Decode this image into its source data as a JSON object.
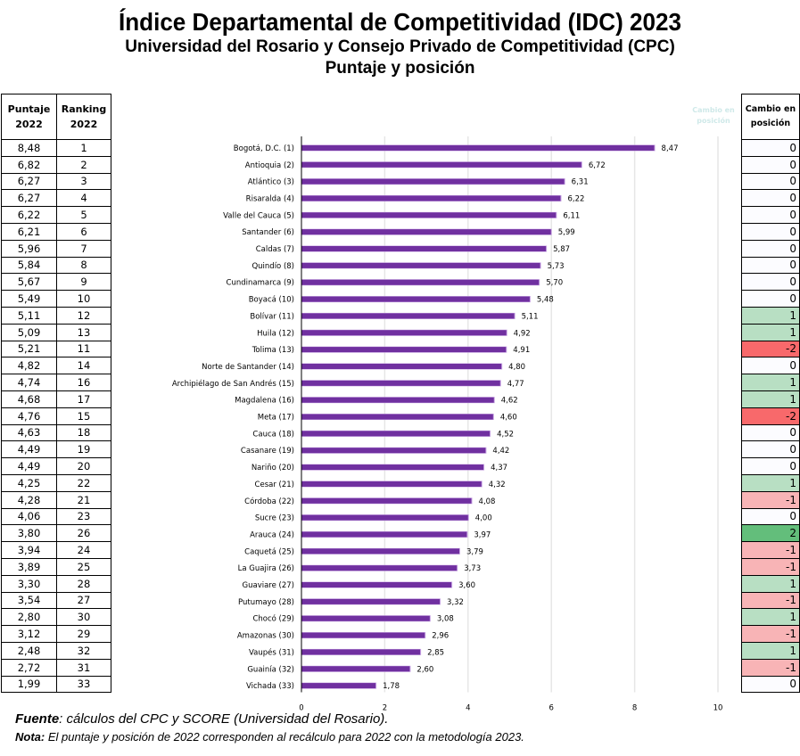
{
  "header": {
    "title": "Índice Departamental de Competitividad (IDC) 2023",
    "subtitle": "Universidad del Rosario y Consejo Privado de Competitividad (CPC)",
    "subtitle2": "Puntaje y posición"
  },
  "left_table": {
    "headers": [
      "Puntaje 2022",
      "Ranking 2022"
    ],
    "header_lines": [
      [
        "Puntaje",
        "2022"
      ],
      [
        "Ranking",
        "2022"
      ]
    ]
  },
  "right_table": {
    "header_lines": [
      "Cambio en",
      "posición"
    ],
    "ghost_header_lines": [
      "Cambio en",
      "posición"
    ]
  },
  "colors": {
    "bar": "#7030a0",
    "bar_edge": "#c9a6e4",
    "gridline": "#e6e6e6",
    "axis": "#000000",
    "change_zero": "#fcfcff",
    "change_plus1": "#b8dfc3",
    "change_plus2": "#63be7b",
    "change_minus1": "#f8b4b6",
    "change_minus2": "#f8696b"
  },
  "chart_data": {
    "type": "bar",
    "orientation": "horizontal",
    "title": "Índice Departamental de Competitividad (IDC) 2023",
    "subtitle": "Puntaje y posición",
    "xlabel": "",
    "ylabel": "",
    "xlim": [
      0,
      10
    ],
    "xticks": [
      0,
      2,
      4,
      6,
      8,
      10
    ],
    "xtick_labels": [
      "0",
      "2",
      "4",
      "6",
      "8",
      "10"
    ],
    "grid": true,
    "legend": "none",
    "categories": [
      "Bogotá, D.C. (1)",
      "Antioquia (2)",
      "Atlántico (3)",
      "Risaralda (4)",
      "Valle del Cauca (5)",
      "Santander (6)",
      "Caldas (7)",
      "Quindío (8)",
      "Cundinamarca (9)",
      "Boyacá (10)",
      "Bolívar (11)",
      "Huila (12)",
      "Tolima (13)",
      "Norte de Santander (14)",
      "Archipiélago de San Andrés (15)",
      "Magdalena (16)",
      "Meta (17)",
      "Cauca (18)",
      "Casanare (19)",
      "Nariño (20)",
      "Cesar (21)",
      "Córdoba (22)",
      "Sucre (23)",
      "Arauca (24)",
      "Caquetá (25)",
      "La Guajira (26)",
      "Guaviare (27)",
      "Putumayo (28)",
      "Chocó (29)",
      "Amazonas (30)",
      "Vaupés (31)",
      "Guainía (32)",
      "Vichada (33)"
    ],
    "values": [
      8.47,
      6.72,
      6.31,
      6.22,
      6.11,
      5.99,
      5.87,
      5.73,
      5.7,
      5.48,
      5.11,
      4.92,
      4.91,
      4.8,
      4.77,
      4.62,
      4.6,
      4.52,
      4.42,
      4.37,
      4.32,
      4.08,
      4.0,
      3.97,
      3.79,
      3.73,
      3.6,
      3.32,
      3.08,
      2.96,
      2.85,
      2.6,
      1.78
    ],
    "value_labels": [
      "8,47",
      "6,72",
      "6,31",
      "6,22",
      "6,11",
      "5,99",
      "5,87",
      "5,73",
      "5,70",
      "5,48",
      "5,11",
      "4,92",
      "4,91",
      "4,80",
      "4,77",
      "4,62",
      "4,60",
      "4,52",
      "4,42",
      "4,37",
      "4,32",
      "4,08",
      "4,00",
      "3,97",
      "3,79",
      "3,73",
      "3,60",
      "3,32",
      "3,08",
      "2,96",
      "2,85",
      "2,60",
      "1,78"
    ],
    "score_2022": [
      "8,48",
      "6,82",
      "6,27",
      "6,27",
      "6,22",
      "6,21",
      "5,96",
      "5,84",
      "5,67",
      "5,49",
      "5,11",
      "5,09",
      "5,21",
      "4,82",
      "4,74",
      "4,68",
      "4,76",
      "4,63",
      "4,49",
      "4,49",
      "4,25",
      "4,28",
      "4,06",
      "3,80",
      "3,94",
      "3,89",
      "3,30",
      "3,54",
      "2,80",
      "3,12",
      "2,48",
      "2,72",
      "1,99"
    ],
    "rank_2022": [
      "1",
      "2",
      "3",
      "4",
      "5",
      "6",
      "7",
      "8",
      "9",
      "10",
      "12",
      "13",
      "11",
      "14",
      "16",
      "17",
      "15",
      "18",
      "19",
      "20",
      "22",
      "21",
      "23",
      "26",
      "24",
      "25",
      "28",
      "27",
      "30",
      "29",
      "32",
      "31",
      "33"
    ],
    "position_change": [
      0,
      0,
      0,
      0,
      0,
      0,
      0,
      0,
      0,
      0,
      1,
      1,
      -2,
      0,
      1,
      1,
      -2,
      0,
      0,
      0,
      1,
      -1,
      0,
      2,
      -1,
      -1,
      1,
      -1,
      1,
      -1,
      1,
      -1,
      0
    ]
  },
  "footer": {
    "fuente_label": "Fuente",
    "fuente_text": ": cálculos del CPC y SCORE (Universidad del Rosario).",
    "nota_label": "Nota:",
    "nota_text": " El puntaje y posición de 2022 corresponden al recálculo para 2022 con la metodología 2023."
  }
}
